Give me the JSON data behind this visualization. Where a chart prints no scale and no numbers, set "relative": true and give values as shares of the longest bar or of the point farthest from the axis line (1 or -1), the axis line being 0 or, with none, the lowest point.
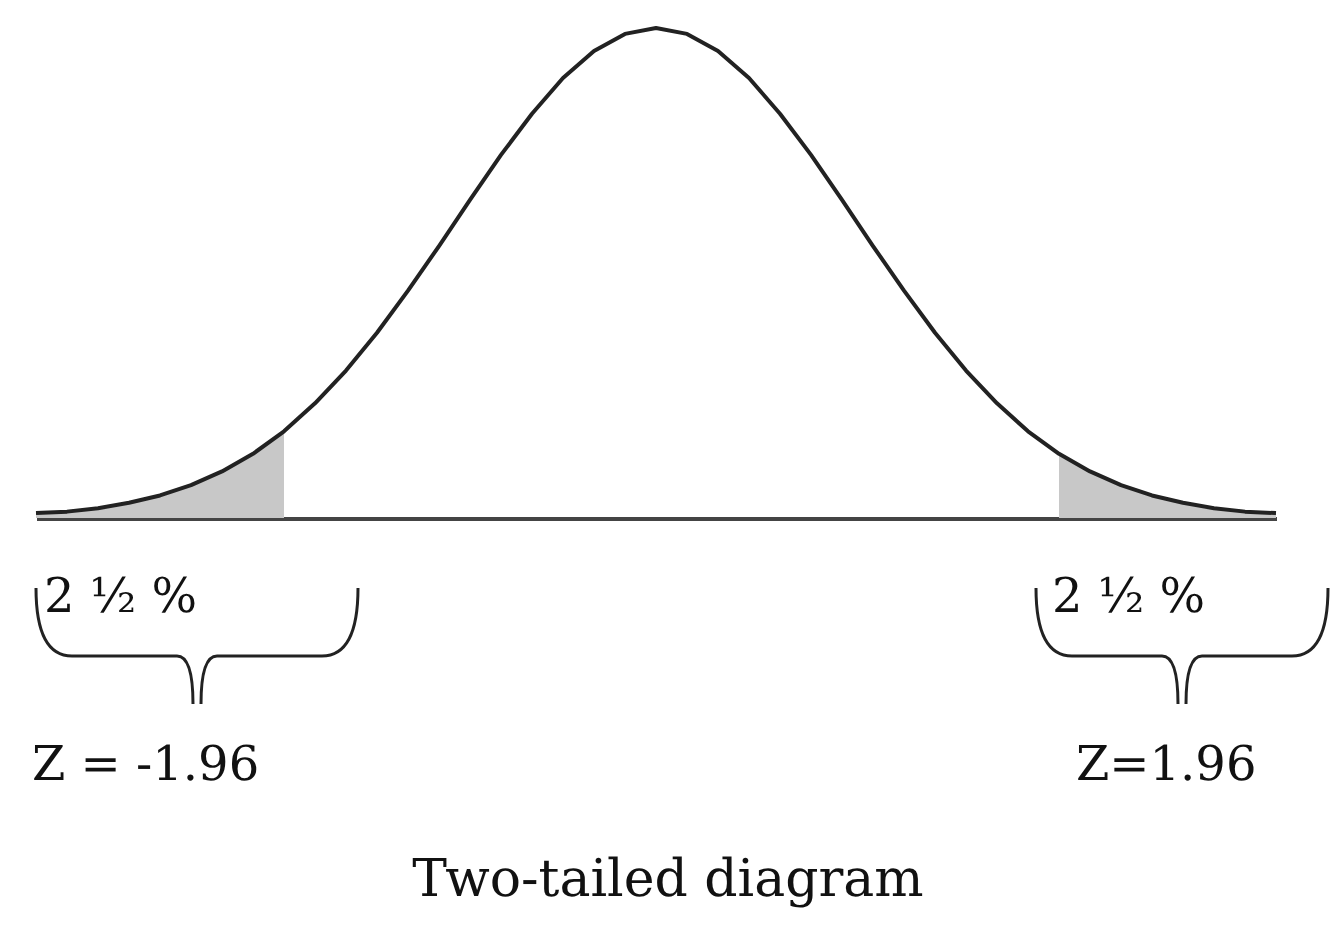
{
  "chart_data": {
    "type": "line",
    "relative": true,
    "title": "Two-tailed diagram",
    "categories": [
      null,
      null,
      null,
      null,
      null,
      null,
      null,
      null,
      null,
      null,
      null,
      null,
      null,
      null,
      null,
      null,
      null,
      null,
      null,
      null,
      null,
      null,
      null,
      null,
      null,
      null,
      null,
      null,
      null,
      null,
      null,
      null,
      null,
      null,
      null,
      null,
      null,
      null,
      null,
      null,
      null
    ],
    "series": [
      {
        "type": "area",
        "color": "#c8c8c8",
        "values": [
          0.01,
          0.013,
          0.02,
          0.031,
          0.046,
          0.067,
          0.095,
          0.131,
          0.177,
          null,
          null,
          null,
          null,
          null,
          null,
          null,
          null,
          null,
          null,
          null,
          null,
          null,
          null,
          null,
          null,
          null,
          null,
          null,
          null,
          null,
          null,
          null,
          null,
          null,
          null,
          null,
          null,
          null,
          null,
          null,
          null
        ]
      },
      {
        "type": "area",
        "color": "#c8c8c8",
        "values": [
          null,
          null,
          null,
          null,
          null,
          null,
          null,
          null,
          null,
          null,
          null,
          null,
          null,
          null,
          null,
          null,
          null,
          null,
          null,
          null,
          null,
          null,
          null,
          null,
          null,
          null,
          null,
          null,
          null,
          null,
          null,
          null,
          null,
          0.131,
          0.095,
          0.067,
          0.046,
          0.031,
          0.02,
          0.013,
          0.01
        ]
      },
      {
        "type": "line",
        "color": "#222222",
        "values": [
          0.01,
          0.013,
          0.02,
          0.031,
          0.046,
          0.067,
          0.095,
          0.131,
          0.177,
          0.234,
          0.301,
          0.378,
          0.464,
          0.555,
          0.649,
          0.741,
          0.825,
          0.898,
          0.953,
          0.988,
          1,
          0.988,
          0.953,
          0.898,
          0.825,
          0.741,
          0.649,
          0.555,
          0.464,
          0.378,
          0.301,
          0.234,
          0.177,
          0.131,
          0.095,
          0.067,
          0.046,
          0.031,
          0.02,
          0.013,
          0.01
        ]
      }
    ],
    "annotations": [
      "2 ½ %",
      "2 ½ %",
      "Z = -1.96",
      "Z=1.96"
    ],
    "grid": false,
    "marker": "none",
    "line_style": "solid"
  }
}
